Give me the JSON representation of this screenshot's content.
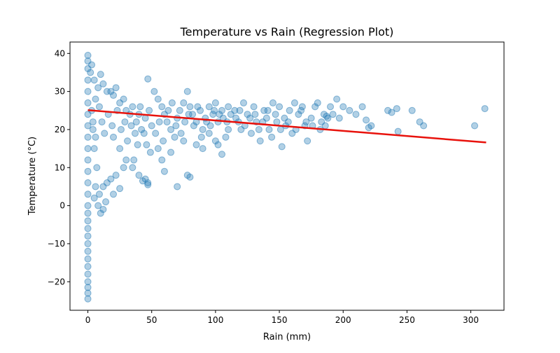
{
  "chart_data": {
    "type": "scatter",
    "title": "Temperature vs Rain (Regression Plot)",
    "xlabel": "Rain (mm)",
    "ylabel": "Temperature (°C)",
    "xlim": [
      -14,
      326
    ],
    "ylim": [
      -27.5,
      43
    ],
    "xticks": [
      0,
      50,
      100,
      150,
      200,
      250,
      300
    ],
    "yticks": [
      -20,
      -10,
      0,
      10,
      20,
      30,
      40
    ],
    "grid": false,
    "colors": {
      "points": "#1f77b4",
      "regression": "#e8120c"
    },
    "regression": {
      "x": [
        0,
        312
      ],
      "y": [
        25.1,
        16.6
      ]
    },
    "points": [
      [
        0,
        39.5
      ],
      [
        0,
        38
      ],
      [
        0,
        36
      ],
      [
        0,
        33
      ],
      [
        0,
        30
      ],
      [
        0,
        27
      ],
      [
        0,
        24
      ],
      [
        0,
        21
      ],
      [
        0,
        18
      ],
      [
        0,
        15
      ],
      [
        0,
        12
      ],
      [
        0,
        9
      ],
      [
        0,
        6
      ],
      [
        0,
        3
      ],
      [
        0,
        0
      ],
      [
        0,
        -2
      ],
      [
        0,
        -4
      ],
      [
        0,
        -6
      ],
      [
        0,
        -8
      ],
      [
        0,
        -10
      ],
      [
        0,
        -12
      ],
      [
        0,
        -14
      ],
      [
        0,
        -16
      ],
      [
        0,
        -18
      ],
      [
        0,
        -20
      ],
      [
        0,
        -21.5
      ],
      [
        0,
        -23
      ],
      [
        0,
        -24.5
      ],
      [
        5,
        33
      ],
      [
        8,
        31
      ],
      [
        10,
        34.5
      ],
      [
        12,
        32
      ],
      [
        15,
        30
      ],
      [
        6,
        28
      ],
      [
        3,
        25
      ],
      [
        4,
        20
      ],
      [
        5,
        15
      ],
      [
        7,
        10
      ],
      [
        6,
        5
      ],
      [
        5,
        2
      ],
      [
        8,
        0
      ],
      [
        10,
        -2
      ],
      [
        12,
        -1
      ],
      [
        14,
        1
      ],
      [
        9,
        3
      ],
      [
        18,
        30
      ],
      [
        20,
        29
      ],
      [
        22,
        31
      ],
      [
        25,
        27
      ],
      [
        28,
        28
      ],
      [
        30,
        25
      ],
      [
        33,
        24
      ],
      [
        35,
        26
      ],
      [
        38,
        22
      ],
      [
        40,
        24
      ],
      [
        42,
        20
      ],
      [
        45,
        23
      ],
      [
        48,
        25
      ],
      [
        50,
        21
      ],
      [
        20,
        18
      ],
      [
        25,
        15
      ],
      [
        30,
        12
      ],
      [
        35,
        10
      ],
      [
        40,
        8
      ],
      [
        45,
        7
      ],
      [
        47,
        6
      ],
      [
        47,
        5.5
      ],
      [
        43,
        6.5
      ],
      [
        36,
        12
      ],
      [
        28,
        10
      ],
      [
        22,
        8
      ],
      [
        18,
        7
      ],
      [
        15,
        6
      ],
      [
        12,
        5
      ],
      [
        20,
        3
      ],
      [
        25,
        4.5
      ],
      [
        47,
        33.3
      ],
      [
        52,
        30
      ],
      [
        55,
        28
      ],
      [
        58,
        26
      ],
      [
        60,
        24
      ],
      [
        62,
        22
      ],
      [
        65,
        20
      ],
      [
        68,
        18
      ],
      [
        70,
        23
      ],
      [
        72,
        25
      ],
      [
        75,
        27
      ],
      [
        78,
        30
      ],
      [
        80,
        26
      ],
      [
        82,
        24
      ],
      [
        85,
        22
      ],
      [
        88,
        25
      ],
      [
        90,
        20
      ],
      [
        92,
        23
      ],
      [
        95,
        26
      ],
      [
        98,
        24
      ],
      [
        100,
        27
      ],
      [
        102,
        22
      ],
      [
        105,
        25
      ],
      [
        108,
        18
      ],
      [
        110,
        20
      ],
      [
        55,
        15
      ],
      [
        58,
        12
      ],
      [
        60,
        9
      ],
      [
        65,
        14
      ],
      [
        70,
        5
      ],
      [
        78,
        8
      ],
      [
        80,
        7.5
      ],
      [
        75,
        17
      ],
      [
        85,
        16
      ],
      [
        90,
        15
      ],
      [
        95,
        19
      ],
      [
        100,
        17
      ],
      [
        105,
        13.5
      ],
      [
        102,
        16
      ],
      [
        110,
        26
      ],
      [
        115,
        25
      ],
      [
        118,
        22
      ],
      [
        120,
        20
      ],
      [
        122,
        27
      ],
      [
        125,
        24
      ],
      [
        128,
        19
      ],
      [
        130,
        26
      ],
      [
        132,
        22
      ],
      [
        135,
        17
      ],
      [
        138,
        25
      ],
      [
        140,
        23
      ],
      [
        142,
        20
      ],
      [
        145,
        27
      ],
      [
        148,
        22
      ],
      [
        150,
        26
      ],
      [
        152,
        15.5
      ],
      [
        155,
        21
      ],
      [
        158,
        25
      ],
      [
        160,
        19
      ],
      [
        162,
        27
      ],
      [
        165,
        24
      ],
      [
        168,
        26
      ],
      [
        170,
        21
      ],
      [
        172,
        17
      ],
      [
        175,
        23
      ],
      [
        178,
        26
      ],
      [
        180,
        27
      ],
      [
        182,
        20
      ],
      [
        185,
        24
      ],
      [
        187,
        23.5
      ],
      [
        188,
        23
      ],
      [
        190,
        26
      ],
      [
        195,
        28
      ],
      [
        200,
        26
      ],
      [
        205,
        25
      ],
      [
        210,
        24
      ],
      [
        215,
        26
      ],
      [
        218,
        22.5
      ],
      [
        220,
        20.5
      ],
      [
        222,
        21
      ],
      [
        235,
        25
      ],
      [
        238,
        24.5
      ],
      [
        242,
        25.5
      ],
      [
        243,
        19.5
      ],
      [
        254,
        25
      ],
      [
        260,
        22
      ],
      [
        263,
        21
      ],
      [
        303,
        21
      ],
      [
        311,
        25.5
      ],
      [
        2,
        35
      ],
      [
        3,
        37
      ],
      [
        4,
        22
      ],
      [
        6,
        18
      ],
      [
        9,
        26
      ],
      [
        11,
        22
      ],
      [
        13,
        19
      ],
      [
        16,
        24
      ],
      [
        19,
        21
      ],
      [
        23,
        25
      ],
      [
        26,
        20
      ],
      [
        29,
        22
      ],
      [
        31,
        17
      ],
      [
        34,
        21
      ],
      [
        37,
        19
      ],
      [
        39,
        16
      ],
      [
        41,
        26
      ],
      [
        44,
        19
      ],
      [
        46,
        16
      ],
      [
        49,
        14
      ],
      [
        53,
        19
      ],
      [
        56,
        22
      ],
      [
        59,
        17
      ],
      [
        63,
        25
      ],
      [
        66,
        27
      ],
      [
        69,
        21
      ],
      [
        73,
        19
      ],
      [
        76,
        22
      ],
      [
        79,
        24
      ],
      [
        83,
        21
      ],
      [
        86,
        26
      ],
      [
        89,
        18
      ],
      [
        93,
        22
      ],
      [
        96,
        21
      ],
      [
        99,
        25
      ],
      [
        103,
        24
      ],
      [
        106,
        23
      ],
      [
        109,
        22
      ],
      [
        112,
        24
      ],
      [
        116,
        23
      ],
      [
        119,
        25
      ],
      [
        123,
        21
      ],
      [
        127,
        23
      ],
      [
        131,
        24
      ],
      [
        134,
        20
      ],
      [
        137,
        22
      ],
      [
        141,
        25
      ],
      [
        144,
        18
      ],
      [
        147,
        24
      ],
      [
        151,
        20
      ],
      [
        154,
        23
      ],
      [
        157,
        22
      ],
      [
        163,
        20
      ],
      [
        167,
        25
      ],
      [
        171,
        22
      ],
      [
        176,
        21
      ],
      [
        183,
        22
      ],
      [
        186,
        21
      ],
      [
        192,
        24
      ],
      [
        197,
        23
      ]
    ]
  }
}
